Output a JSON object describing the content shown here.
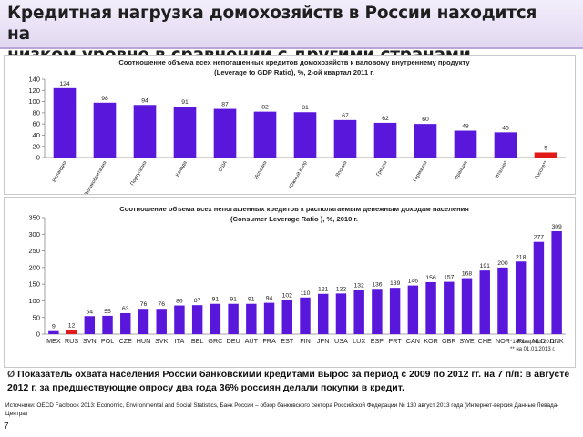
{
  "header": {
    "title_line1": "Кредитная нагрузка домохозяйств в России находится на",
    "title_line2": "низком уровне в сравнении с другими странами"
  },
  "colors": {
    "bar": "#5a17dc",
    "highlight": "#e31a1a",
    "axis": "#888888"
  },
  "chart_data": [
    {
      "type": "bar",
      "title_line1": "Соотношение объема всех непогашенных кредитов домохозяйств к валовому внутреннему продукту",
      "title_line2": "(Leverage to GDP Ratio), %, 2-ой квартал 2011 г.",
      "categories": [
        "Исландия",
        "Великобритания",
        "Португалия",
        "Канада",
        "США",
        "Испания",
        "Южный Кипр",
        "Япония",
        "Греция",
        "Германия",
        "Франция",
        "Италия*",
        "Россия**"
      ],
      "values": [
        124,
        98,
        94,
        91,
        87,
        82,
        81,
        67,
        62,
        60,
        48,
        45,
        9
      ],
      "highlight": "Россия**",
      "ylim": [
        0,
        140
      ],
      "yticks": [
        0,
        20,
        40,
        60,
        80,
        100,
        120,
        140
      ],
      "grid": false,
      "xlabel": "",
      "ylabel": ""
    },
    {
      "type": "bar",
      "title_line1": "Соотношение объема всех непогашенных кредитов к располагаемым денежным доходам населения",
      "title_line2": "(Consumer Leverage Ratio ), %, 2010 г.",
      "categories": [
        "MEX",
        "RUS",
        "SVN",
        "POL",
        "CZE",
        "HUN",
        "SVK",
        "ITA",
        "BEL",
        "GRC",
        "DEU",
        "AUT",
        "FRA",
        "EST",
        "FIN",
        "JPN",
        "USA",
        "LUX",
        "ESP",
        "PRT",
        "CAN",
        "KOR",
        "GBR",
        "SWE",
        "CHE",
        "NOR",
        "IRL",
        "NLD",
        "DNK"
      ],
      "values": [
        9,
        12,
        54,
        55,
        63,
        76,
        76,
        86,
        87,
        91,
        91,
        91,
        94,
        102,
        110,
        121,
        122,
        132,
        136,
        139,
        146,
        156,
        157,
        168,
        191,
        200,
        218,
        277,
        309
      ],
      "highlight": "RUS",
      "ylim": [
        0,
        350
      ],
      "yticks": [
        0,
        50,
        100,
        150,
        200,
        250,
        300,
        350
      ],
      "grid": false,
      "xlabel": "",
      "ylabel": ""
    }
  ],
  "footnotes": {
    "line1": "*1-й квартал 2011 г.",
    "line2": "** на 01.01.2013 г."
  },
  "remark": {
    "marker": "Ø",
    "text": "Показатель охвата населения России банковскими кредитами вырос за период с 2009 по 2012 гг. на 7 п/п: в августе 2012 г. за предшествующие опросу два года 36% россиян делали покупки в кредит."
  },
  "source": {
    "text": "Источники: OECD Factbook 2013: Economic, Environmental and Social Statistics, Банк России – обзор банковского сектора Российской Федерации № 130 август 2013 года (Интернет-версия Данные Левада-Центра)"
  },
  "page_number": "7"
}
